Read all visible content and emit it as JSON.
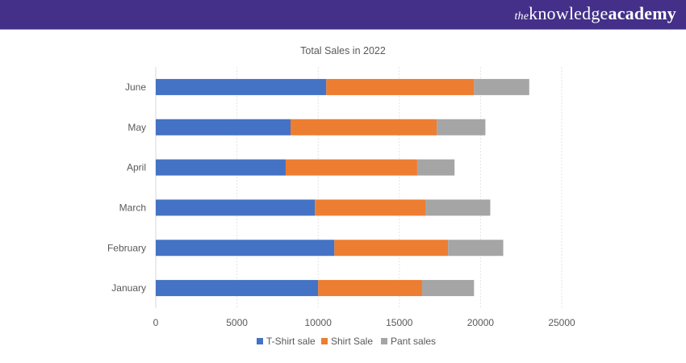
{
  "brand": {
    "logo_text_the": "the",
    "logo_text_knowledge": "knowledge",
    "logo_text_academy": "academy",
    "header_color": "#443089"
  },
  "chart_data": {
    "type": "bar",
    "orientation": "horizontal",
    "stacked": true,
    "title": "Total Sales in 2022",
    "xlabel": "",
    "ylabel": "",
    "categories": [
      "January",
      "February",
      "March",
      "April",
      "May",
      "June"
    ],
    "series": [
      {
        "name": "T-Shirt sale",
        "color": "#4472c4",
        "values": [
          10000,
          11000,
          9800,
          8000,
          8300,
          10500
        ]
      },
      {
        "name": "Shirt Sale",
        "color": "#ed7d31",
        "values": [
          6400,
          7000,
          6800,
          8100,
          9000,
          9100
        ]
      },
      {
        "name": "Pant sales",
        "color": "#a5a5a5",
        "values": [
          3200,
          3400,
          4000,
          2300,
          3000,
          3400
        ]
      }
    ],
    "xlim": [
      0,
      25000
    ],
    "xticks": [
      "0",
      "5000",
      "10000",
      "15000",
      "20000",
      "25000"
    ],
    "grid": true,
    "legend_position": "bottom"
  }
}
